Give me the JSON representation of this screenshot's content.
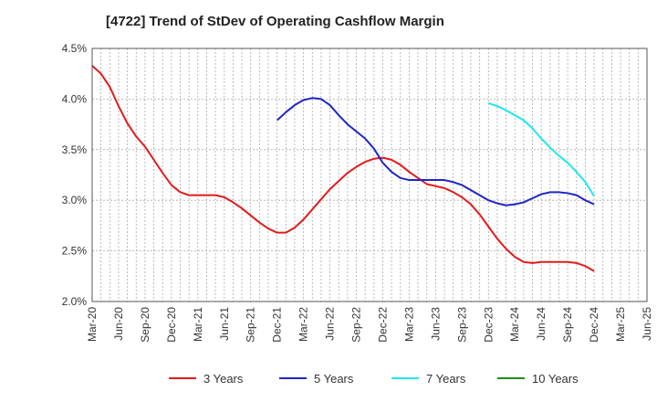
{
  "chart_data": {
    "type": "line",
    "title": "[4722]  Trend of StDev of Operating Cashflow Margin",
    "xlabel": "",
    "ylabel": "",
    "ylim": [
      2.0,
      4.5
    ],
    "y_ticks": [
      "2.0%",
      "2.5%",
      "3.0%",
      "3.5%",
      "4.0%",
      "4.5%"
    ],
    "x_ticks": [
      "Mar-20",
      "Jun-20",
      "Sep-20",
      "Dec-20",
      "Mar-21",
      "Jun-21",
      "Sep-21",
      "Dec-21",
      "Mar-22",
      "Jun-22",
      "Sep-22",
      "Dec-22",
      "Mar-23",
      "Jun-23",
      "Sep-23",
      "Dec-23",
      "Mar-24",
      "Jun-24",
      "Sep-24",
      "Dec-24",
      "Mar-25",
      "Jun-25"
    ],
    "x_start": "Mar-20",
    "x_end": "Jun-25",
    "grid": true,
    "legend_position": "bottom",
    "series": [
      {
        "name": "3 Years",
        "color": "#e31a1c",
        "points": [
          [
            "Mar-20",
            4.33
          ],
          [
            "Apr-20",
            4.25
          ],
          [
            "May-20",
            4.12
          ],
          [
            "Jun-20",
            3.93
          ],
          [
            "Jul-20",
            3.76
          ],
          [
            "Aug-20",
            3.63
          ],
          [
            "Sep-20",
            3.53
          ],
          [
            "Oct-20",
            3.4
          ],
          [
            "Nov-20",
            3.27
          ],
          [
            "Dec-20",
            3.15
          ],
          [
            "Jan-21",
            3.08
          ],
          [
            "Feb-21",
            3.05
          ],
          [
            "Mar-21",
            3.05
          ],
          [
            "Apr-21",
            3.05
          ],
          [
            "May-21",
            3.05
          ],
          [
            "Jun-21",
            3.03
          ],
          [
            "Jul-21",
            2.98
          ],
          [
            "Aug-21",
            2.92
          ],
          [
            "Sep-21",
            2.85
          ],
          [
            "Oct-21",
            2.78
          ],
          [
            "Nov-21",
            2.72
          ],
          [
            "Dec-21",
            2.68
          ],
          [
            "Jan-22",
            2.68
          ],
          [
            "Feb-22",
            2.73
          ],
          [
            "Mar-22",
            2.81
          ],
          [
            "Apr-22",
            2.91
          ],
          [
            "May-22",
            3.01
          ],
          [
            "Jun-22",
            3.11
          ],
          [
            "Jul-22",
            3.19
          ],
          [
            "Aug-22",
            3.27
          ],
          [
            "Sep-22",
            3.33
          ],
          [
            "Oct-22",
            3.38
          ],
          [
            "Nov-22",
            3.41
          ],
          [
            "Dec-22",
            3.42
          ],
          [
            "Jan-23",
            3.4
          ],
          [
            "Feb-23",
            3.35
          ],
          [
            "Mar-23",
            3.28
          ],
          [
            "Apr-23",
            3.22
          ],
          [
            "May-23",
            3.16
          ],
          [
            "Jun-23",
            3.14
          ],
          [
            "Jul-23",
            3.12
          ],
          [
            "Aug-23",
            3.08
          ],
          [
            "Sep-23",
            3.03
          ],
          [
            "Oct-23",
            2.96
          ],
          [
            "Nov-23",
            2.86
          ],
          [
            "Dec-23",
            2.74
          ],
          [
            "Jan-24",
            2.62
          ],
          [
            "Feb-24",
            2.52
          ],
          [
            "Mar-24",
            2.44
          ],
          [
            "Apr-24",
            2.39
          ],
          [
            "May-24",
            2.38
          ],
          [
            "Jun-24",
            2.39
          ],
          [
            "Jul-24",
            2.39
          ],
          [
            "Aug-24",
            2.39
          ],
          [
            "Sep-24",
            2.39
          ],
          [
            "Oct-24",
            2.38
          ],
          [
            "Nov-24",
            2.35
          ],
          [
            "Dec-24",
            2.3
          ]
        ]
      },
      {
        "name": "5 Years",
        "color": "#1f26c4",
        "points": [
          [
            "Dec-21",
            3.79
          ],
          [
            "Jan-22",
            3.87
          ],
          [
            "Feb-22",
            3.94
          ],
          [
            "Mar-22",
            3.99
          ],
          [
            "Apr-22",
            4.01
          ],
          [
            "May-22",
            4.0
          ],
          [
            "Jun-22",
            3.94
          ],
          [
            "Jul-22",
            3.84
          ],
          [
            "Aug-22",
            3.75
          ],
          [
            "Sep-22",
            3.68
          ],
          [
            "Oct-22",
            3.61
          ],
          [
            "Nov-22",
            3.51
          ],
          [
            "Dec-22",
            3.37
          ],
          [
            "Jan-23",
            3.28
          ],
          [
            "Feb-23",
            3.22
          ],
          [
            "Mar-23",
            3.2
          ],
          [
            "Apr-23",
            3.2
          ],
          [
            "May-23",
            3.2
          ],
          [
            "Jun-23",
            3.2
          ],
          [
            "Jul-23",
            3.2
          ],
          [
            "Aug-23",
            3.18
          ],
          [
            "Sep-23",
            3.15
          ],
          [
            "Oct-23",
            3.1
          ],
          [
            "Nov-23",
            3.05
          ],
          [
            "Dec-23",
            3.0
          ],
          [
            "Jan-24",
            2.97
          ],
          [
            "Feb-24",
            2.95
          ],
          [
            "Mar-24",
            2.96
          ],
          [
            "Apr-24",
            2.98
          ],
          [
            "May-24",
            3.02
          ],
          [
            "Jun-24",
            3.06
          ],
          [
            "Jul-24",
            3.08
          ],
          [
            "Aug-24",
            3.08
          ],
          [
            "Sep-24",
            3.07
          ],
          [
            "Oct-24",
            3.05
          ],
          [
            "Nov-24",
            3.0
          ],
          [
            "Dec-24",
            2.96
          ]
        ]
      },
      {
        "name": "7 Years",
        "color": "#1de8ee",
        "points": [
          [
            "Dec-23",
            3.96
          ],
          [
            "Jan-24",
            3.93
          ],
          [
            "Feb-24",
            3.89
          ],
          [
            "Mar-24",
            3.84
          ],
          [
            "Apr-24",
            3.79
          ],
          [
            "May-24",
            3.71
          ],
          [
            "Jun-24",
            3.61
          ],
          [
            "Jul-24",
            3.52
          ],
          [
            "Aug-24",
            3.44
          ],
          [
            "Sep-24",
            3.37
          ],
          [
            "Oct-24",
            3.28
          ],
          [
            "Nov-24",
            3.18
          ],
          [
            "Dec-24",
            3.04
          ]
        ]
      },
      {
        "name": "10 Years",
        "color": "#1a8c1a",
        "points": []
      }
    ]
  }
}
